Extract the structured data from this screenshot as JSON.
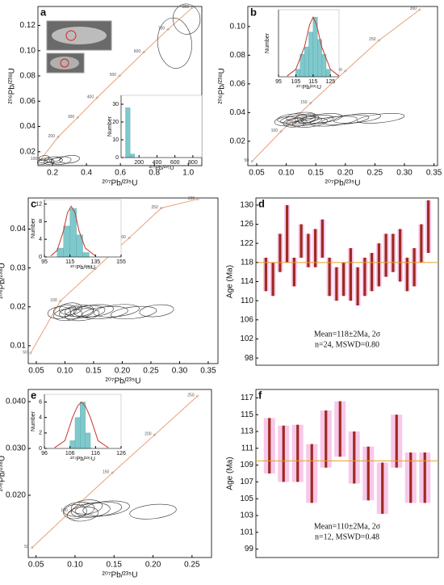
{
  "chart_data": [
    {
      "type": "concordia",
      "panel_label": "a",
      "xlabel": "²⁰⁷Pb/²³⁵U",
      "ylabel": "²⁰⁶Pb/²³⁸U",
      "xlim": [
        0.114,
        1.08
      ],
      "ylim": [
        0.009,
        0.135
      ],
      "xticks": [
        0.2,
        0.4,
        0.6,
        0.8,
        {
          "value": 1.0,
          "label": "1.0"
        }
      ],
      "yticks": [
        0.02,
        0.04,
        0.06,
        0.08,
        {
          "value": 0.1,
          "label": "0.10"
        },
        0.12
      ],
      "line_color": "#e8a07a",
      "ellipse_color": "#333",
      "concordia": {
        "ages": [
          100,
          200,
          300,
          400,
          500,
          600,
          700,
          800
        ],
        "x": [
          0.129,
          0.233,
          0.348,
          0.462,
          0.595,
          0.738,
          0.881,
          1.024
        ],
        "y": [
          0.0136,
          0.0317,
          0.0471,
          0.0627,
          0.0801,
          0.0988,
          0.1169,
          0.134
        ]
      },
      "ellipses": {
        "x": [
          0.14,
          0.16,
          0.18,
          0.2,
          0.22,
          0.25,
          0.15,
          0.3,
          0.92,
          0.99
        ],
        "y": [
          0.012,
          0.013,
          0.012,
          0.014,
          0.013,
          0.013,
          0.015,
          0.014,
          0.106,
          0.125
        ],
        "rx": [
          0.03,
          0.04,
          0.03,
          0.05,
          0.04,
          0.06,
          0.03,
          0.06,
          0.1,
          0.08
        ],
        "ry": [
          0.002,
          0.002,
          0.002,
          0.002,
          0.002,
          0.003,
          0.002,
          0.003,
          0.02,
          0.012
        ]
      },
      "inset": {
        "xlabel": "²⁰⁷Pb/²³⁵U",
        "ylabel": "Number",
        "xlim": [
          0,
          900
        ],
        "ylim": [
          0,
          35
        ],
        "xticks": [
          200,
          400,
          600,
          800
        ],
        "yticks": [
          0,
          10,
          20,
          30
        ],
        "bins": [
          50,
          100,
          150
        ],
        "counts": [
          28,
          2
        ],
        "bar_color": "#7fc8cc",
        "curve_color": "#c0392b"
      }
    },
    {
      "type": "concordia",
      "panel_label": "b",
      "xlabel": "²⁰⁷Pb/²³⁵U",
      "ylabel": "²⁰⁶Pb/²³⁸U",
      "xlim": [
        0.035,
        0.356
      ],
      "ylim": [
        0.003,
        0.114
      ],
      "xticks": [
        0.05,
        {
          "value": 0.1,
          "label": "0.10"
        },
        0.15,
        {
          "value": 0.2,
          "label": "0.20"
        },
        0.25,
        {
          "value": 0.3,
          "label": "0.30"
        },
        0.35
      ],
      "yticks": [
        0.02,
        0.04,
        0.06,
        0.08,
        {
          "value": 0.1,
          "label": "0.10"
        }
      ],
      "line_color": "#e8a07a",
      "ellipse_color": "#333",
      "concordia": {
        "ages": [
          50,
          100,
          150,
          200,
          250,
          300
        ],
        "x": [
          0.042,
          0.091,
          0.141,
          0.2,
          0.257,
          0.326
        ],
        "y": [
          0.0059,
          0.0268,
          0.0465,
          0.069,
          0.0904,
          0.1118
        ]
      },
      "ellipses": {
        "x": [
          0.1,
          0.11,
          0.115,
          0.12,
          0.125,
          0.13,
          0.135,
          0.14,
          0.15,
          0.16,
          0.18,
          0.2,
          0.22,
          0.26
        ],
        "y": [
          0.034,
          0.036,
          0.033,
          0.035,
          0.037,
          0.034,
          0.036,
          0.033,
          0.035,
          0.036,
          0.034,
          0.035,
          0.036,
          0.036
        ],
        "rx": [
          0.02,
          0.025,
          0.02,
          0.03,
          0.025,
          0.03,
          0.02,
          0.03,
          0.03,
          0.035,
          0.04,
          0.04,
          0.04,
          0.04
        ],
        "ry": [
          0.003,
          0.003,
          0.003,
          0.003,
          0.003,
          0.003,
          0.003,
          0.003,
          0.003,
          0.003,
          0.003,
          0.003,
          0.003,
          0.003
        ]
      },
      "inset": {
        "xlabel": "²⁰⁷Pb/²³⁵U",
        "ylabel": "Number",
        "xlim": [
          95,
          130
        ],
        "ylim": [
          0,
          9
        ],
        "xticks": [
          95,
          105,
          115,
          125
        ],
        "bins": [
          105,
          107.5,
          110,
          112.5,
          115,
          117.5,
          120,
          122.5,
          125
        ],
        "counts": [
          1,
          3,
          4,
          6,
          8,
          5,
          3,
          1
        ],
        "curve_x": [
          100,
          105,
          110,
          113,
          115,
          117,
          120,
          125,
          130
        ],
        "curve_y": [
          0.1,
          1,
          4,
          7,
          8,
          7,
          4,
          1,
          0.1
        ],
        "bar_color": "#7fc8cc",
        "curve_color": "#c0392b"
      }
    },
    {
      "type": "concordia",
      "panel_label": "c",
      "xlabel": "²⁰⁷Pb/²³⁵U",
      "ylabel": "²⁰⁶Pb/²³⁸U",
      "xlim": [
        0.036,
        0.367
      ],
      "ylim": [
        0.0054,
        0.048
      ],
      "xticks": [
        0.05,
        {
          "value": 0.1,
          "label": "0.10"
        },
        0.15,
        {
          "value": 0.2,
          "label": "0.20"
        },
        0.25,
        {
          "value": 0.3,
          "label": "0.30"
        },
        0.35
      ],
      "yticks": [
        0.01,
        0.02,
        0.03,
        0.04
      ],
      "line_color": "#e8a07a",
      "ellipse_color": "#333",
      "concordia": {
        "ages": [
          50,
          100,
          150,
          200,
          250,
          300
        ],
        "x": [
          0.04,
          0.092,
          0.153,
          0.212,
          0.268,
          0.332
        ],
        "y": [
          0.0081,
          0.0215,
          0.0298,
          0.0377,
          0.0454,
          0.0477
        ]
      },
      "ellipses": {
        "x": [
          0.09,
          0.1,
          0.105,
          0.11,
          0.12,
          0.125,
          0.13,
          0.14,
          0.15,
          0.17,
          0.19,
          0.22,
          0.26
        ],
        "y": [
          0.0185,
          0.019,
          0.018,
          0.0195,
          0.0185,
          0.019,
          0.018,
          0.0188,
          0.019,
          0.0185,
          0.019,
          0.0185,
          0.019
        ],
        "rx": [
          0.02,
          0.02,
          0.025,
          0.02,
          0.03,
          0.025,
          0.03,
          0.03,
          0.035,
          0.04,
          0.04,
          0.04,
          0.03
        ],
        "ry": [
          0.0015,
          0.0015,
          0.0015,
          0.0015,
          0.0015,
          0.0015,
          0.0015,
          0.0015,
          0.0015,
          0.0015,
          0.0015,
          0.0015,
          0.0015
        ]
      },
      "inset": {
        "xlabel": "²⁰⁷Pb/²³⁵U",
        "ylabel": "Number",
        "xlim": [
          95,
          155
        ],
        "ylim": [
          0,
          13
        ],
        "xticks": [
          95,
          115,
          135,
          155
        ],
        "yticks": [
          0,
          4,
          8,
          12
        ],
        "bins": [
          105,
          110,
          115,
          120,
          125,
          130
        ],
        "counts": [
          2,
          7,
          11,
          5,
          1
        ],
        "curve_x": [
          100,
          105,
          110,
          113,
          116,
          119,
          122,
          127,
          135
        ],
        "curve_y": [
          0.2,
          1.5,
          6,
          10,
          11.5,
          10,
          6,
          2,
          0.2
        ],
        "bar_color": "#7fc8cc",
        "curve_color": "#c0392b"
      }
    },
    {
      "type": "weighted_mean",
      "panel_label": "d",
      "ylabel": "Age (Ma)",
      "ylim": [
        96.5,
        131.5
      ],
      "yticks": [
        98,
        102,
        106,
        110,
        114,
        118,
        122,
        126,
        130
      ],
      "values": [
        115.5,
        114.5,
        120,
        124,
        116,
        122.5,
        120.5,
        121,
        123,
        115,
        113.5,
        114.5,
        115.5,
        113,
        115,
        116,
        117.5,
        119.5,
        120,
        119.5,
        115.5,
        117,
        122,
        125.5
      ],
      "errors": [
        3.5,
        3.5,
        4,
        6,
        3,
        3.5,
        3.5,
        4,
        4,
        4,
        3.5,
        3.5,
        5.5,
        4,
        4,
        4,
        4.5,
        4.5,
        4,
        5.5,
        3.5,
        4,
        4,
        5.5
      ],
      "mean": 118,
      "annotations": [
        "Mean=118±2Ma, 2σ",
        "n=24, MSWD=0.80"
      ],
      "bar_color": "#9e2a1e",
      "box_color": "#f7c8ea",
      "mean_color": "#e8a020"
    },
    {
      "type": "concordia",
      "panel_label": "e",
      "xlabel": "²⁰⁷Pb/²³⁵U",
      "ylabel": "²⁰⁶Pb/²³⁸U",
      "xlim": [
        0.04,
        0.275
      ],
      "ylim": [
        0.0067,
        0.0426
      ],
      "xticks": [
        0.05,
        {
          "value": 0.1,
          "label": "0.10"
        },
        0.15,
        {
          "value": 0.2,
          "label": "0.20"
        },
        0.25
      ],
      "yticks": [
        {
          "value": 0.02,
          "label": "0.020"
        },
        {
          "value": 0.03,
          "label": "0.030"
        },
        {
          "value": 0.04,
          "label": "0.040"
        }
      ],
      "line_color": "#e8a07a",
      "ellipse_color": "#333",
      "concordia": {
        "ages": [
          50,
          100,
          150,
          200,
          250
        ],
        "x": [
          0.0448,
          0.0946,
          0.148,
          0.202,
          0.257
        ],
        "y": [
          0.0088,
          0.0166,
          0.0248,
          0.0329,
          0.0412
        ]
      },
      "ellipses": {
        "x": [
          0.1,
          0.105,
          0.11,
          0.115,
          0.12,
          0.13,
          0.14,
          0.2
        ],
        "y": [
          0.0165,
          0.017,
          0.016,
          0.0175,
          0.0168,
          0.017,
          0.0172,
          0.0165
        ],
        "rx": [
          0.015,
          0.02,
          0.02,
          0.02,
          0.025,
          0.03,
          0.03,
          0.03
        ],
        "ry": [
          0.0015,
          0.0015,
          0.0015,
          0.0015,
          0.0015,
          0.0015,
          0.0015,
          0.0015
        ]
      },
      "inset": {
        "xlabel": "²⁰⁷Pb/²³⁵U",
        "ylabel": "Number",
        "xlim": [
          96,
          126
        ],
        "ylim": [
          0,
          7
        ],
        "xticks": [
          96,
          106,
          116,
          126
        ],
        "yticks": [
          0,
          2,
          4,
          6
        ],
        "bins": [
          106,
          108,
          110,
          112,
          114
        ],
        "counts": [
          1,
          4,
          6,
          2
        ],
        "curve_x": [
          100,
          104,
          107,
          109,
          110.5,
          112,
          114,
          117,
          121
        ],
        "curve_y": [
          0.1,
          1,
          4,
          5.5,
          6,
          5.5,
          4,
          1,
          0.1
        ],
        "bar_color": "#7fc8cc",
        "curve_color": "#c0392b"
      }
    },
    {
      "type": "weighted_mean",
      "panel_label": "f",
      "ylabel": "Age (Ma)",
      "ylim": [
        98,
        118
      ],
      "yticks": [
        99,
        101,
        103,
        105,
        107,
        109,
        111,
        113,
        115,
        117
      ],
      "values": [
        111.3,
        110.35,
        110.4,
        108,
        112.1,
        113.3,
        109.9,
        108,
        106.25,
        111.85,
        107.5,
        107.5
      ],
      "errors": [
        3.3,
        3.35,
        3.4,
        3.5,
        3.4,
        3.3,
        3.1,
        3.2,
        3.05,
        3.15,
        3,
        3
      ],
      "mean": 109.5,
      "annotations": [
        "Mean=110±2Ma, 2σ",
        "n=12, MSWD=0.48"
      ],
      "bar_color": "#9e2a1e",
      "box_color": "#f7c8ea",
      "mean_color": "#e8a020"
    }
  ]
}
